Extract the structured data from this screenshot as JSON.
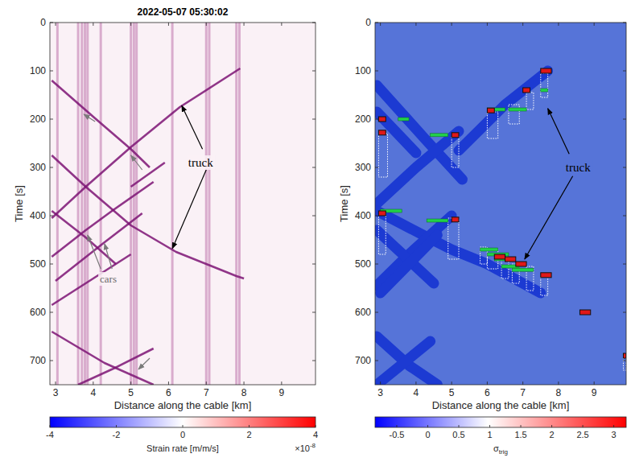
{
  "chart_data": [
    {
      "type": "heatmap",
      "title": "2022-05-07 05:30:02",
      "x_label": "Distance along the cable [km]",
      "y_label": "Time [s]",
      "xlim": [
        2.85,
        9.9
      ],
      "ylim": [
        0,
        750
      ],
      "xticks": [
        3,
        4,
        5,
        6,
        7,
        8,
        9
      ],
      "yticks": [
        0,
        100,
        200,
        300,
        400,
        500,
        600,
        700
      ],
      "colorbar": {
        "label": "Strain rate [m/m/s]",
        "lim": [
          -4,
          4
        ],
        "ticks": [
          -4,
          -2,
          0,
          2,
          4
        ],
        "multiplier": "×10",
        "multiplier_exponent": "-8"
      },
      "stripes": [
        3.05,
        3.6,
        3.7,
        3.78,
        3.85,
        4.2,
        5.0,
        5.08,
        5.15,
        6.1,
        7.0,
        7.08,
        7.8,
        7.88
      ],
      "tracks": [
        {
          "x": [
            7.9,
            6.3,
            5.0,
            3.8,
            2.9
          ],
          "t": [
            95,
            175,
            258,
            340,
            405
          ]
        },
        {
          "x": [
            2.9,
            3.8,
            5.0,
            6.2,
            7.0,
            7.8,
            8.0
          ],
          "t": [
            275,
            340,
            420,
            475,
            500,
            525,
            530
          ]
        },
        {
          "x": [
            2.9,
            4.0,
            5.0,
            5.5
          ],
          "t": [
            120,
            195,
            262,
            300
          ]
        },
        {
          "x": [
            5.9,
            5.0
          ],
          "t": [
            290,
            340
          ]
        },
        {
          "x": [
            5.6,
            4.5,
            3.8,
            2.9
          ],
          "t": [
            330,
            390,
            430,
            485
          ]
        },
        {
          "x": [
            5.3,
            4.3,
            3.0
          ],
          "t": [
            395,
            455,
            535
          ]
        },
        {
          "x": [
            2.9,
            3.8,
            4.6
          ],
          "t": [
            390,
            445,
            500
          ]
        },
        {
          "x": [
            5.0,
            4.0,
            2.9
          ],
          "t": [
            480,
            530,
            585
          ]
        },
        {
          "x": [
            2.9,
            4.3,
            5.6
          ],
          "t": [
            640,
            705,
            750
          ]
        },
        {
          "x": [
            5.6,
            4.5,
            3.6
          ],
          "t": [
            675,
            718,
            750
          ]
        }
      ],
      "annotations": [
        {
          "text": "truck",
          "x": 6.85,
          "t": 290,
          "color": "black",
          "arrows": [
            [
              6.9,
              262,
              6.35,
              172
            ],
            [
              7.0,
              305,
              6.1,
              468
            ]
          ]
        },
        {
          "text": "cars",
          "x": 4.4,
          "t": 530,
          "color": "gray",
          "arrows": [
            [
              4.2,
              510,
              3.85,
              440
            ],
            [
              4.5,
              510,
              4.3,
              458
            ]
          ]
        }
      ],
      "pointer_arrows": [
        [
          4.05,
          205,
          3.75,
          190
        ],
        [
          5.3,
          305,
          5.0,
          275
        ],
        [
          5.5,
          695,
          5.2,
          718
        ]
      ]
    },
    {
      "type": "heatmap",
      "x_label": "Distance along the cable [km]",
      "y_label": "Time [s]",
      "xlim": [
        2.85,
        9.9
      ],
      "ylim": [
        0,
        750
      ],
      "xticks": [
        3,
        4,
        5,
        6,
        7,
        8,
        9
      ],
      "yticks": [
        0,
        100,
        200,
        300,
        400,
        500,
        600,
        700
      ],
      "colorbar": {
        "label": "σ",
        "label_subscript": "trig",
        "lim": [
          -0.85,
          3.2
        ],
        "ticks": [
          -0.5,
          0,
          0.5,
          1,
          1.5,
          2,
          2.5,
          3
        ]
      },
      "bands": [
        {
          "x": [
            2.9,
            4.3,
            5.3
          ],
          "t": [
            130,
            245,
            325
          ]
        },
        {
          "x": [
            2.9,
            4.0
          ],
          "t": [
            185,
            270
          ]
        },
        {
          "x": [
            5.2,
            4.0,
            2.9
          ],
          "t": [
            225,
            300,
            375
          ]
        },
        {
          "x": [
            7.7,
            6.5,
            5.2
          ],
          "t": [
            100,
            170,
            265
          ]
        },
        {
          "x": [
            2.9,
            4.2,
            5.0,
            6.0,
            7.5
          ],
          "t": [
            390,
            440,
            470,
            500,
            560
          ]
        },
        {
          "x": [
            5.0,
            3.8,
            2.9
          ],
          "t": [
            400,
            480,
            545
          ]
        },
        {
          "x": [
            2.9,
            4.5
          ],
          "t": [
            430,
            540
          ]
        },
        {
          "x": [
            4.6,
            3.0
          ],
          "t": [
            440,
            560
          ]
        },
        {
          "x": [
            2.9,
            3.8,
            4.6
          ],
          "t": [
            650,
            710,
            750
          ]
        },
        {
          "x": [
            4.4,
            2.9
          ],
          "t": [
            660,
            750
          ]
        }
      ],
      "detections": [
        [
          2.95,
          3.2,
          230,
          320
        ],
        [
          5.0,
          5.2,
          235,
          300
        ],
        [
          6.0,
          6.3,
          185,
          240
        ],
        [
          6.6,
          6.9,
          170,
          210
        ],
        [
          7.1,
          7.3,
          145,
          180
        ],
        [
          7.5,
          7.7,
          105,
          155
        ],
        [
          2.95,
          3.15,
          395,
          480
        ],
        [
          4.9,
          5.2,
          405,
          490
        ],
        [
          5.8,
          6.0,
          465,
          500
        ],
        [
          6.0,
          6.3,
          470,
          510
        ],
        [
          6.4,
          6.6,
          485,
          530
        ],
        [
          6.7,
          6.9,
          500,
          540
        ],
        [
          7.1,
          7.3,
          505,
          555
        ],
        [
          7.5,
          7.7,
          525,
          565
        ],
        [
          9.82,
          9.9,
          690,
          720
        ]
      ],
      "triggers_green": [
        [
          3.5,
          3.8,
          200
        ],
        [
          4.4,
          4.9,
          233
        ],
        [
          6.0,
          6.5,
          180
        ],
        [
          6.6,
          7.1,
          180
        ],
        [
          7.5,
          7.7,
          140
        ],
        [
          3.0,
          3.6,
          390
        ],
        [
          4.3,
          4.9,
          410
        ],
        [
          5.8,
          6.3,
          470
        ],
        [
          6.0,
          6.6,
          480
        ],
        [
          6.2,
          6.7,
          490
        ],
        [
          6.4,
          6.9,
          505
        ],
        [
          6.7,
          7.3,
          512
        ]
      ],
      "triggers_red": [
        [
          2.95,
          3.15,
          200
        ],
        [
          2.95,
          3.15,
          228
        ],
        [
          5.0,
          5.2,
          233
        ],
        [
          6.0,
          6.2,
          182
        ],
        [
          7.0,
          7.2,
          140
        ],
        [
          7.5,
          7.8,
          100
        ],
        [
          2.95,
          3.15,
          395
        ],
        [
          5.0,
          5.2,
          408
        ],
        [
          6.2,
          6.5,
          485
        ],
        [
          6.5,
          6.8,
          490
        ],
        [
          6.8,
          7.1,
          500
        ],
        [
          7.5,
          7.8,
          523
        ],
        [
          8.6,
          8.9,
          600
        ],
        [
          9.82,
          9.9,
          690
        ]
      ],
      "annotations": [
        {
          "text": "truck",
          "x": 8.55,
          "t": 300,
          "color": "black",
          "arrows": [
            [
              8.3,
              272,
              7.7,
              178
            ],
            [
              8.4,
              318,
              7.05,
              490
            ]
          ]
        }
      ]
    }
  ]
}
